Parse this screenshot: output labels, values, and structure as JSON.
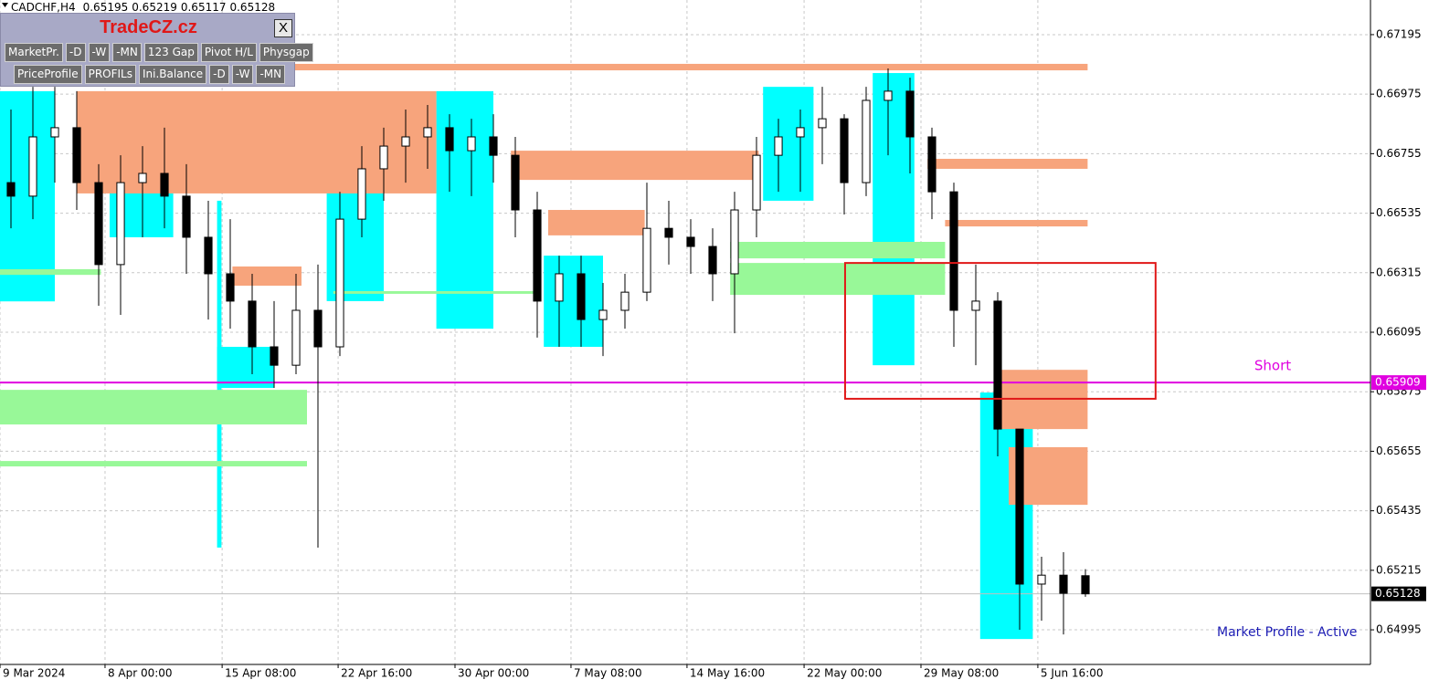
{
  "chart_data": {
    "type": "candlestick",
    "title": "CADCHF,H4",
    "color": "#000000",
    "x": [
      0.5,
      1.5,
      2.5,
      3.5,
      4.5,
      5.5,
      6.5,
      7.5,
      8.5,
      9.5,
      10.5,
      11.5,
      12.5,
      13.5,
      14.5,
      15.5,
      16.5,
      17.5,
      18.5,
      19.5,
      20.5,
      21.5,
      22.5,
      23.5,
      24.5,
      25.5,
      26.5,
      27.5,
      28.5,
      29.5,
      30.5,
      31.5,
      32.5,
      33.5,
      34.5,
      35.5,
      36.5,
      37.5,
      38.5,
      39.5,
      40.5,
      41.5,
      42.5,
      43.5,
      44.5,
      45.5,
      46.5,
      47.5,
      48.5,
      49.5
    ],
    "open": [
      0.66648,
      0.66598,
      0.66817,
      0.66851,
      0.66648,
      0.66345,
      0.66648,
      0.66682,
      0.66598,
      0.66446,
      0.66311,
      0.6621,
      0.66041,
      0.65973,
      0.66176,
      0.66041,
      0.66513,
      0.66699,
      0.66783,
      0.66817,
      0.66851,
      0.66766,
      0.66817,
      0.66749,
      0.66547,
      0.6621,
      0.66311,
      0.66142,
      0.66176,
      0.66243,
      0.66479,
      0.66446,
      0.66412,
      0.66311,
      0.66547,
      0.66749,
      0.66817,
      0.66851,
      0.66884,
      0.66648,
      0.66952,
      0.66986,
      0.66817,
      0.66614,
      0.66176,
      0.6621,
      0.65737,
      0.65164,
      0.65197,
      0.65195
    ],
    "high": [
      0.66918,
      0.67002,
      0.67002,
      0.66986,
      0.66716,
      0.66749,
      0.66783,
      0.66851,
      0.66716,
      0.66581,
      0.66513,
      0.66311,
      0.6621,
      0.66311,
      0.66345,
      0.66614,
      0.66783,
      0.66851,
      0.66918,
      0.66935,
      0.66901,
      0.66884,
      0.66901,
      0.66817,
      0.66614,
      0.66378,
      0.66378,
      0.66277,
      0.66311,
      0.66648,
      0.66581,
      0.66513,
      0.66479,
      0.66614,
      0.66817,
      0.66884,
      0.66918,
      0.67002,
      0.66901,
      0.67002,
      0.6707,
      0.67036,
      0.66851,
      0.66648,
      0.66345,
      0.66243,
      0.65737,
      0.65265,
      0.65282,
      0.65219
    ],
    "low": [
      0.66479,
      0.66513,
      0.66648,
      0.66547,
      0.66193,
      0.66159,
      0.66446,
      0.66479,
      0.66311,
      0.66142,
      0.66108,
      0.6594,
      0.65889,
      0.6594,
      0.65299,
      0.66007,
      0.66446,
      0.66581,
      0.66648,
      0.66699,
      0.66614,
      0.66598,
      0.66648,
      0.66446,
      0.66075,
      0.66041,
      0.66041,
      0.66007,
      0.66108,
      0.6621,
      0.66345,
      0.66311,
      0.6621,
      0.66091,
      0.66446,
      0.66614,
      0.66614,
      0.66716,
      0.6653,
      0.66598,
      0.66749,
      0.66682,
      0.66513,
      0.66041,
      0.65973,
      0.65636,
      0.64995,
      0.65029,
      0.64978,
      0.65117
    ],
    "close": [
      0.66598,
      0.66817,
      0.66851,
      0.66648,
      0.66345,
      0.66648,
      0.66682,
      0.66598,
      0.66446,
      0.66311,
      0.6621,
      0.66041,
      0.65973,
      0.66176,
      0.66041,
      0.66513,
      0.66699,
      0.66783,
      0.66817,
      0.66851,
      0.66766,
      0.66817,
      0.66749,
      0.66547,
      0.6621,
      0.66311,
      0.66142,
      0.66176,
      0.66243,
      0.66479,
      0.66446,
      0.66412,
      0.66311,
      0.66547,
      0.66749,
      0.66817,
      0.66851,
      0.66884,
      0.66648,
      0.66952,
      0.66986,
      0.66817,
      0.66614,
      0.66176,
      0.6621,
      0.65737,
      0.65164,
      0.65197,
      0.6513,
      0.65128
    ],
    "xlim": [
      0,
      62.5
    ],
    "ylim": [
      0.64867,
      0.67323
    ],
    "yticks": [
      0.67195,
      0.66975,
      0.66755,
      0.66535,
      0.66315,
      0.66095,
      0.65875,
      0.65655,
      0.65435,
      0.65215,
      0.64995
    ],
    "xticks": [
      {
        "value": 0,
        "label": "9 Mar 2024"
      },
      {
        "value": 4.79,
        "label": "8 Apr 00:00"
      },
      {
        "value": 10.13,
        "label": "15 Apr 08:00"
      },
      {
        "value": 15.42,
        "label": "22 Apr 16:00"
      },
      {
        "value": 20.75,
        "label": "30 Apr 00:00"
      },
      {
        "value": 26.04,
        "label": "7 May 08:00"
      },
      {
        "value": 31.33,
        "label": "14 May 16:00"
      },
      {
        "value": 36.67,
        "label": "22 May 00:00"
      },
      {
        "value": 42,
        "label": "29 May 08:00"
      },
      {
        "value": 47.33,
        "label": "5 Jun 16:00"
      }
    ],
    "grid": true,
    "hline": {
      "value": 0.65909,
      "label": "Short",
      "color": "#e000e0"
    },
    "box": {
      "x": [
        38.54,
        52.7
      ],
      "y": [
        0.66351,
        0.65849
      ],
      "color": "#e01818"
    },
    "zones": [
      {
        "color": "#00ffff",
        "rects": [
          [
            9.9,
            12.5,
            0.66041,
            0.65889
          ],
          [
            9.9,
            10.1,
            0.66581,
            0.65299
          ],
          [
            14.9,
            17.5,
            0.66884,
            0.6621
          ],
          [
            19.9,
            22.5,
            0.66986,
            0.66108
          ],
          [
            39.8,
            41.7,
            0.67053,
            0.65973
          ],
          [
            44.7,
            47.1,
            0.65872,
            0.64961
          ],
          [
            0,
            2.5,
            0.66986,
            0.66209
          ],
          [
            24.8,
            27.5,
            0.66378,
            0.66041
          ],
          [
            34.8,
            37.1,
            0.67002,
            0.66581
          ],
          [
            5,
            7.9,
            0.66783,
            0.66446
          ]
        ]
      },
      {
        "color": "#f7a47c",
        "rects": [
          [
            0,
            49.6,
            0.67087,
            0.67063
          ],
          [
            3.5,
            19.9,
            0.66986,
            0.66608
          ],
          [
            23.3,
            34.6,
            0.66766,
            0.66658
          ],
          [
            25,
            29.4,
            0.66547,
            0.66453
          ],
          [
            42.3,
            49.6,
            0.66736,
            0.66699
          ],
          [
            43.1,
            49.6,
            0.6651,
            0.66486
          ],
          [
            45.4,
            49.6,
            0.65956,
            0.65737
          ],
          [
            46,
            49.6,
            0.6567,
            0.65457
          ],
          [
            10.6,
            13.75,
            0.66338,
            0.66267
          ]
        ]
      },
      {
        "color": "#98f898",
        "rects": [
          [
            0,
            14,
            0.65882,
            0.65754
          ],
          [
            0,
            14,
            0.65619,
            0.65599
          ],
          [
            33.3,
            43.1,
            0.66429,
            0.66368
          ],
          [
            33.3,
            43.1,
            0.66351,
            0.66233
          ],
          [
            0,
            4.6,
            0.66328,
            0.66307
          ],
          [
            15.2,
            24.6,
            0.66247,
            0.66237
          ]
        ]
      }
    ]
  },
  "ui": {
    "logo": "TradeCZ.cz",
    "close": "X",
    "buttons": [
      [
        "MarketPr.",
        "-D",
        "-W",
        "-MN",
        "123 Gap",
        "Pivot H/L",
        "Physgap"
      ],
      [
        "PriceProfile",
        "PROFILs",
        "Ini.Balance",
        "-D",
        "-W",
        "-MN"
      ]
    ],
    "status": "Market Profile - Active"
  }
}
